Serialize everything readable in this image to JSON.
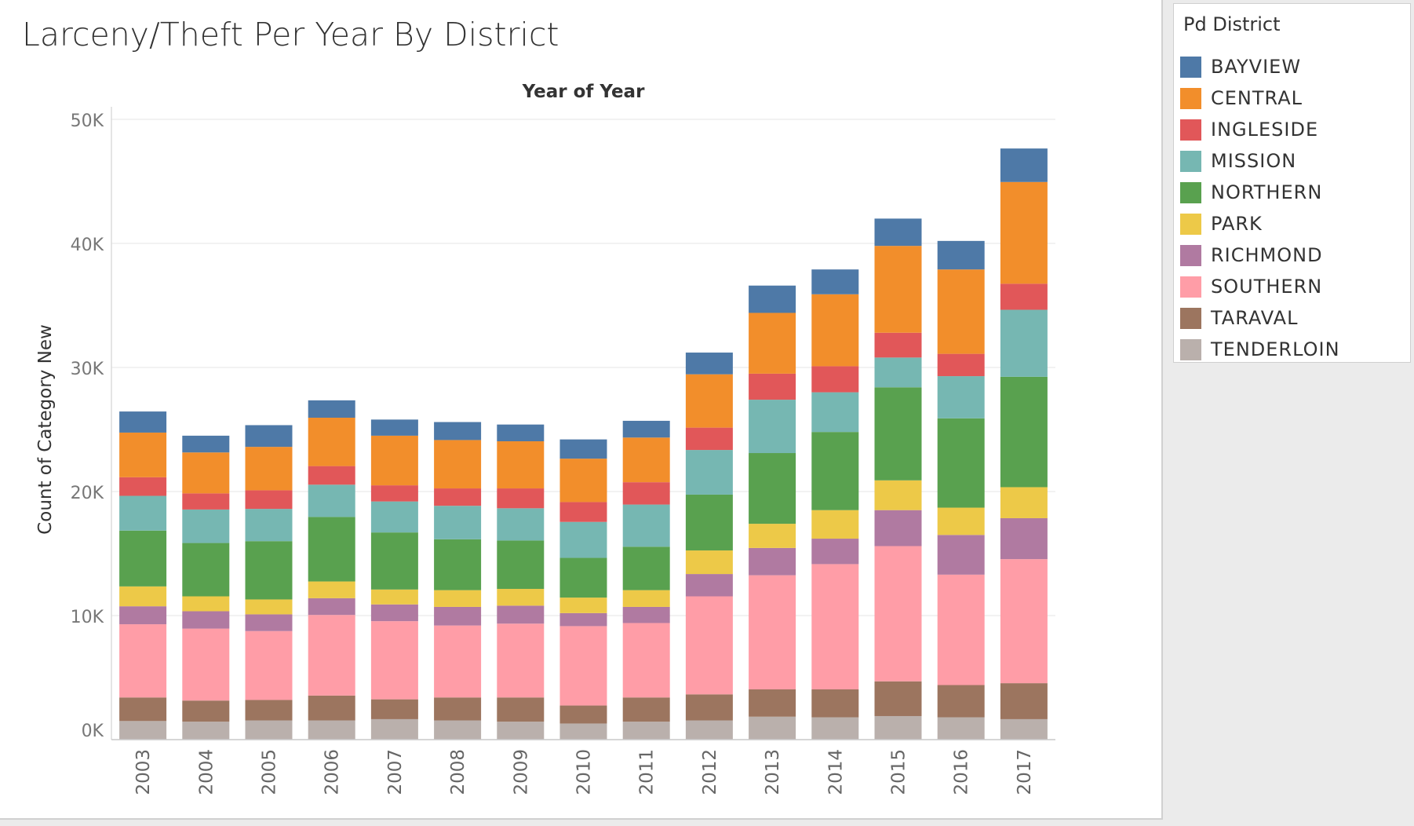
{
  "title": "Larceny/Theft Per Year By District",
  "legend": {
    "title": "Pd District",
    "items": [
      {
        "label": "BAYVIEW",
        "color": "#4e79a7"
      },
      {
        "label": "CENTRAL",
        "color": "#f28e2b"
      },
      {
        "label": "INGLESIDE",
        "color": "#e15759"
      },
      {
        "label": "MISSION",
        "color": "#76b7b2"
      },
      {
        "label": "NORTHERN",
        "color": "#59a14f"
      },
      {
        "label": "PARK",
        "color": "#edc948"
      },
      {
        "label": "RICHMOND",
        "color": "#b07aa1"
      },
      {
        "label": "SOUTHERN",
        "color": "#ff9da7"
      },
      {
        "label": "TARAVAL",
        "color": "#9c755f"
      },
      {
        "label": "TENDERLOIN",
        "color": "#bab0ac"
      }
    ]
  },
  "chart_data": {
    "type": "bar",
    "stacked": true,
    "title": "Larceny/Theft Per Year By District",
    "xlabel": "Year of Year",
    "ylabel": "Count of Category New",
    "ylim": [
      0,
      50000
    ],
    "yticks": [
      0,
      10000,
      20000,
      30000,
      40000,
      50000
    ],
    "ytick_labels": [
      "0K",
      "10K",
      "20K",
      "30K",
      "40K",
      "50K"
    ],
    "grid": true,
    "legend_position": "right",
    "categories": [
      "2003",
      "2004",
      "2005",
      "2006",
      "2007",
      "2008",
      "2009",
      "2010",
      "2011",
      "2012",
      "2013",
      "2014",
      "2015",
      "2016",
      "2017"
    ],
    "series": [
      {
        "name": "TENDERLOIN",
        "color": "#bab0ac",
        "values": [
          1500,
          1450,
          1550,
          1550,
          1650,
          1550,
          1450,
          1300,
          1450,
          1550,
          1850,
          1800,
          1900,
          1800,
          1650
        ]
      },
      {
        "name": "TARAVAL",
        "color": "#9c755f",
        "values": [
          1900,
          1700,
          1650,
          2000,
          1600,
          1850,
          1950,
          1450,
          1950,
          2100,
          2200,
          2250,
          2800,
          2600,
          2900
        ]
      },
      {
        "name": "SOUTHERN",
        "color": "#ff9da7",
        "values": [
          5900,
          5800,
          5550,
          6500,
          6300,
          5800,
          5950,
          6400,
          6000,
          7900,
          9200,
          10100,
          10900,
          8900,
          10000
        ]
      },
      {
        "name": "RICHMOND",
        "color": "#b07aa1",
        "values": [
          1450,
          1400,
          1350,
          1350,
          1350,
          1500,
          1450,
          1050,
          1300,
          1800,
          2200,
          2050,
          2900,
          3200,
          3300
        ]
      },
      {
        "name": "PARK",
        "color": "#edc948",
        "values": [
          1600,
          1200,
          1200,
          1350,
          1200,
          1350,
          1350,
          1250,
          1350,
          1900,
          1950,
          2300,
          2400,
          2200,
          2500
        ]
      },
      {
        "name": "NORTHERN",
        "color": "#59a14f",
        "values": [
          4500,
          4300,
          4700,
          5200,
          4600,
          4100,
          3900,
          3200,
          3500,
          4500,
          5700,
          6300,
          7500,
          7200,
          8900
        ]
      },
      {
        "name": "MISSION",
        "color": "#76b7b2",
        "values": [
          2800,
          2700,
          2600,
          2600,
          2500,
          2700,
          2600,
          2900,
          3400,
          3600,
          4300,
          3200,
          2400,
          3400,
          5400
        ]
      },
      {
        "name": "INGLESIDE",
        "color": "#e15759",
        "values": [
          1500,
          1300,
          1500,
          1500,
          1300,
          1400,
          1600,
          1600,
          1800,
          1800,
          2100,
          2100,
          2000,
          1800,
          2100
        ]
      },
      {
        "name": "CENTRAL",
        "color": "#f28e2b",
        "values": [
          3600,
          3300,
          3500,
          3900,
          4000,
          3900,
          3800,
          3500,
          3600,
          4300,
          4900,
          5800,
          7000,
          6800,
          8200
        ]
      },
      {
        "name": "BAYVIEW",
        "color": "#4e79a7",
        "values": [
          1700,
          1350,
          1750,
          1400,
          1300,
          1450,
          1350,
          1550,
          1350,
          1750,
          2200,
          2000,
          2200,
          2300,
          2700
        ]
      }
    ]
  }
}
